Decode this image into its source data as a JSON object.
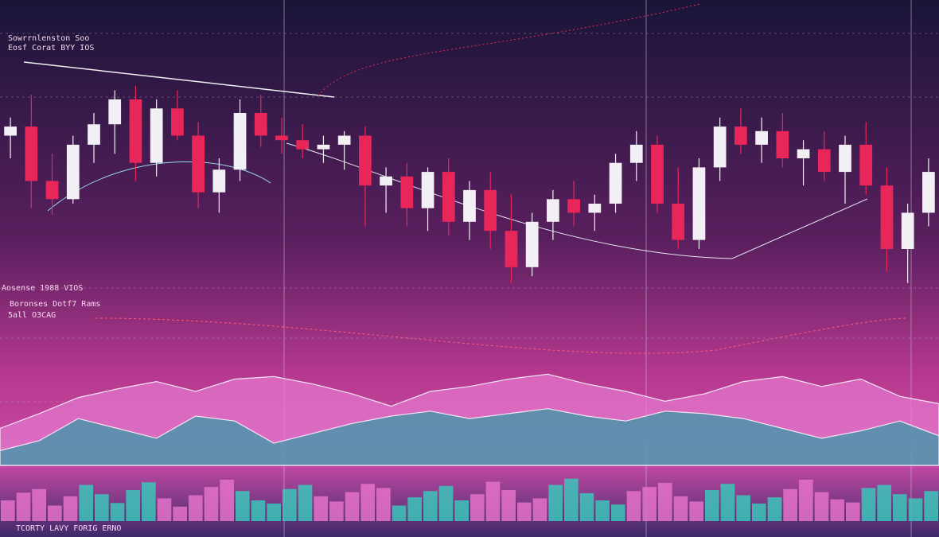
{
  "chart_data": [
    {
      "type": "candlestick",
      "open": [
        70,
        74,
        50,
        42,
        66,
        75,
        86,
        58,
        82,
        70,
        45,
        55,
        80,
        70,
        68,
        64,
        66,
        70,
        48,
        52,
        38,
        54,
        32,
        46,
        28,
        12,
        32,
        42,
        36,
        40,
        58,
        66,
        40,
        24,
        56,
        74,
        66,
        72,
        60,
        64,
        54,
        66,
        48,
        20,
        36
      ],
      "high": [
        78,
        88,
        62,
        70,
        80,
        90,
        92,
        86,
        90,
        76,
        60,
        86,
        88,
        78,
        75,
        70,
        72,
        74,
        56,
        58,
        56,
        60,
        50,
        54,
        44,
        36,
        46,
        50,
        44,
        62,
        72,
        70,
        56,
        60,
        78,
        82,
        78,
        80,
        68,
        72,
        70,
        76,
        56,
        40,
        60
      ],
      "low": [
        60,
        38,
        35,
        40,
        58,
        62,
        50,
        52,
        68,
        38,
        36,
        50,
        65,
        62,
        60,
        58,
        55,
        30,
        36,
        30,
        28,
        26,
        24,
        20,
        5,
        8,
        24,
        30,
        28,
        36,
        50,
        36,
        20,
        20,
        50,
        62,
        58,
        56,
        48,
        50,
        40,
        44,
        10,
        5,
        30
      ],
      "close": [
        74,
        50,
        42,
        66,
        75,
        86,
        58,
        82,
        70,
        45,
        55,
        80,
        70,
        68,
        64,
        66,
        70,
        48,
        52,
        38,
        54,
        32,
        46,
        28,
        12,
        32,
        42,
        36,
        40,
        58,
        66,
        40,
        24,
        56,
        74,
        66,
        72,
        60,
        64,
        54,
        66,
        48,
        20,
        36,
        54
      ],
      "up_color": "#f2f0f5",
      "down_color": "#e8265a",
      "ylim": [
        0,
        100
      ],
      "annotations": [
        "Sowrrnlenston Soo",
        "Eosf Corat BYY IOS",
        "Aosense 1988 VIOS",
        "Boronses Dotf7 Rams",
        "5all O3CAG",
        "TCORTY LAVY FORIG ERNO"
      ]
    },
    {
      "type": "area",
      "series": [
        {
          "color": "#e67bd0",
          "values": [
            30,
            42,
            55,
            62,
            68,
            60,
            70,
            72,
            66,
            58,
            48,
            60,
            64,
            70,
            74,
            66,
            60,
            52,
            58,
            68,
            72,
            64,
            70,
            56,
            50
          ]
        },
        {
          "color": "#2f9ea6",
          "values": [
            12,
            20,
            38,
            30,
            22,
            40,
            36,
            18,
            26,
            34,
            40,
            44,
            38,
            42,
            46,
            40,
            36,
            44,
            42,
            38,
            30,
            22,
            28,
            36,
            24
          ]
        }
      ],
      "ylim": [
        0,
        100
      ]
    },
    {
      "type": "bar",
      "values": [
        40,
        55,
        62,
        30,
        48,
        70,
        52,
        35,
        60,
        75,
        44,
        28,
        50,
        66,
        80,
        58,
        40,
        34,
        62,
        70,
        48,
        38,
        56,
        72,
        64,
        30,
        46,
        58,
        68,
        40,
        52,
        76,
        60,
        36,
        44,
        70,
        82,
        54,
        40,
        32,
        58,
        66,
        74,
        48,
        38,
        60,
        72,
        50,
        34,
        46,
        62,
        80,
        56,
        42,
        36,
        64,
        70,
        52,
        44,
        58
      ],
      "colors": [
        "#e472c8",
        "#3cc6bb"
      ],
      "ylim": [
        0,
        100
      ]
    }
  ]
}
